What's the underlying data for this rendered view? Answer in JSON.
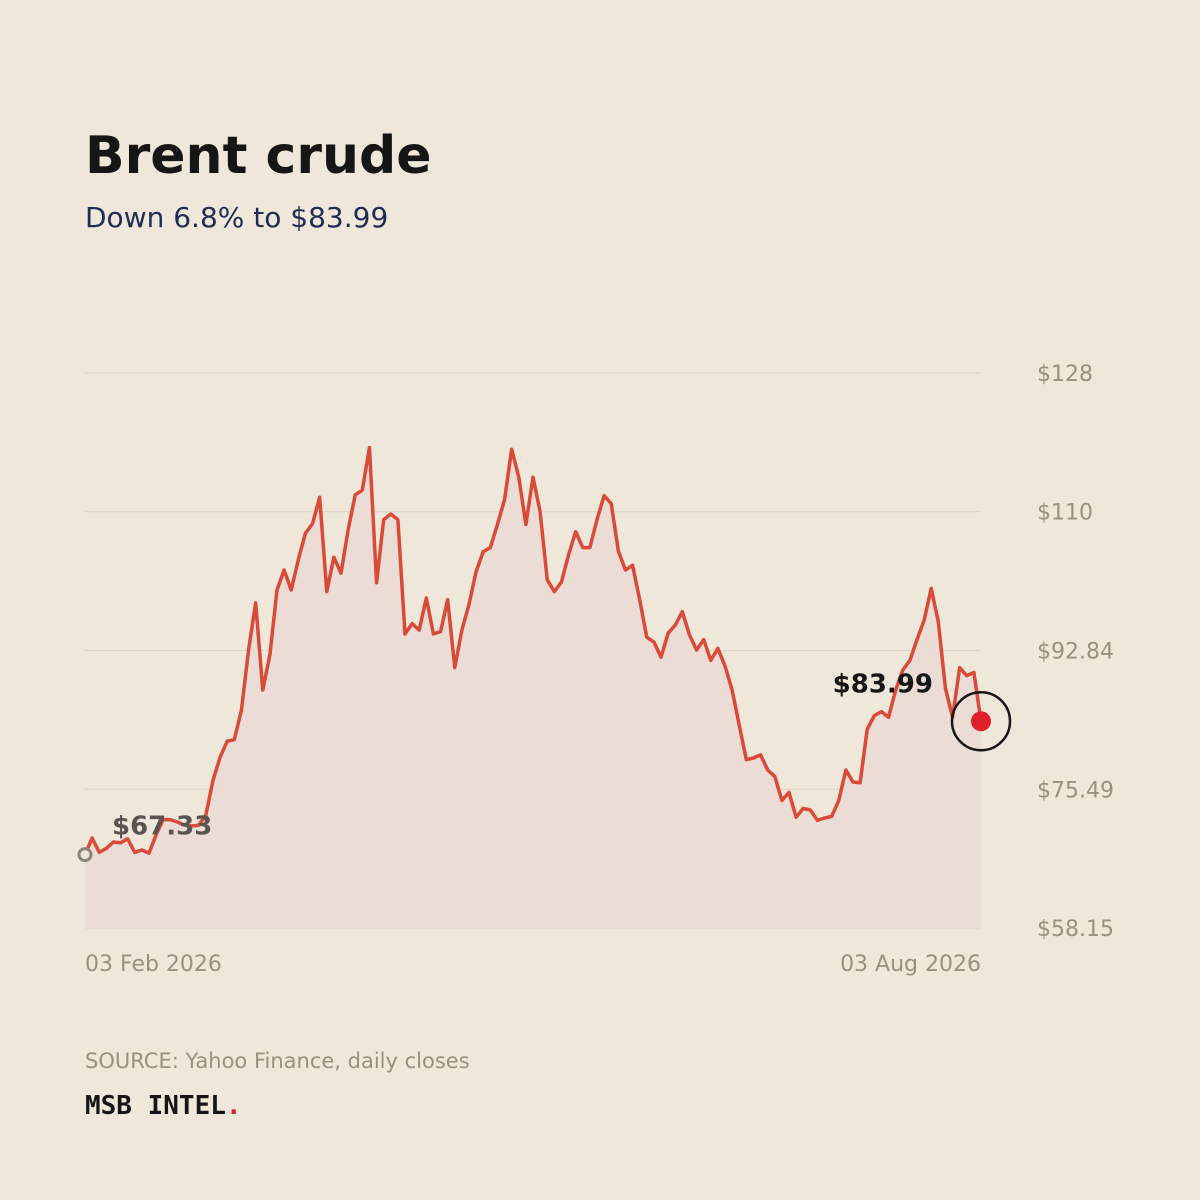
{
  "chart_data": {
    "type": "line",
    "title": "Brent crude",
    "subtitle": "Down 6.8% to $83.99",
    "source": "SOURCE: Yahoo Finance, daily closes",
    "brand": {
      "name": "MSB INTEL",
      "mark": "."
    },
    "color": "#d94a38",
    "fill": "#ecdcd6",
    "grid": true,
    "ylim": [
      58.15,
      127.53
    ],
    "yticks": [
      {
        "value": 58.15,
        "label": "$58.15"
      },
      {
        "value": 75.49,
        "label": "$75.49"
      },
      {
        "value": 92.84,
        "label": "$92.84"
      },
      {
        "value": 110.19,
        "label": "$110"
      },
      {
        "value": 127.53,
        "label": "$128"
      }
    ],
    "categories": [
      "03 Feb 2026",
      null,
      null,
      null,
      null,
      null,
      null,
      null,
      null,
      null,
      null,
      null,
      null,
      null,
      null,
      null,
      null,
      null,
      null,
      null,
      null,
      null,
      null,
      null,
      null,
      null,
      null,
      null,
      null,
      null,
      null,
      null,
      null,
      null,
      null,
      null,
      null,
      null,
      null,
      null,
      null,
      null,
      null,
      null,
      null,
      null,
      null,
      null,
      null,
      null,
      null,
      null,
      null,
      null,
      null,
      null,
      null,
      null,
      null,
      null,
      null,
      null,
      null,
      null,
      null,
      null,
      null,
      null,
      null,
      null,
      null,
      null,
      null,
      null,
      null,
      null,
      null,
      null,
      null,
      null,
      null,
      null,
      null,
      null,
      null,
      null,
      null,
      null,
      null,
      null,
      null,
      null,
      null,
      null,
      null,
      null,
      null,
      null,
      null,
      null,
      null,
      null,
      null,
      null,
      null,
      null,
      null,
      null,
      null,
      null,
      null,
      null,
      null,
      null,
      null,
      null,
      null,
      null,
      null,
      null,
      null,
      null,
      null,
      null,
      null,
      null,
      "03 Aug 2026"
    ],
    "values": [
      67.33,
      69.4,
      67.6,
      68.1,
      68.9,
      68.8,
      69.3,
      67.6,
      67.9,
      67.5,
      69.8,
      71.7,
      71.7,
      71.4,
      71.0,
      70.9,
      71.0,
      72.3,
      76.6,
      79.5,
      81.5,
      81.7,
      85.4,
      92.9,
      98.8,
      87.9,
      92.3,
      100.4,
      102.9,
      100.4,
      104.2,
      107.5,
      108.7,
      112.0,
      100.2,
      104.5,
      102.5,
      107.9,
      112.3,
      112.9,
      118.2,
      101.3,
      109.2,
      109.9,
      109.2,
      94.9,
      96.2,
      95.4,
      99.4,
      94.9,
      95.2,
      99.2,
      90.7,
      95.4,
      98.6,
      102.7,
      105.2,
      105.7,
      108.6,
      111.7,
      118.0,
      114.5,
      108.6,
      114.5,
      110.2,
      101.7,
      100.2,
      101.4,
      104.8,
      107.7,
      105.7,
      105.7,
      109.2,
      112.2,
      111.2,
      105.3,
      102.9,
      103.5,
      99.2,
      94.5,
      93.9,
      92.0,
      95.0,
      96.0,
      97.7,
      94.8,
      92.9,
      94.2,
      91.6,
      93.1,
      90.9,
      87.9,
      83.5,
      79.2,
      79.4,
      79.8,
      77.9,
      77.1,
      74.1,
      75.1,
      72.0,
      73.1,
      72.9,
      71.6,
      71.9,
      72.1,
      74.1,
      77.9,
      76.4,
      76.3,
      83.0,
      84.7,
      85.2,
      84.5,
      87.9,
      90.4,
      91.6,
      94.2,
      96.6,
      100.6,
      96.4,
      88.1,
      84.5,
      90.7,
      89.7,
      90.1,
      83.99
    ],
    "value_labels": [
      "$67.33",
      null,
      null,
      null,
      null,
      null,
      null,
      null,
      null,
      null,
      null,
      null,
      null,
      null,
      null,
      null,
      null,
      null,
      null,
      null,
      null,
      null,
      null,
      null,
      null,
      null,
      null,
      null,
      null,
      null,
      null,
      null,
      null,
      null,
      null,
      null,
      null,
      null,
      null,
      null,
      null,
      null,
      null,
      null,
      null,
      null,
      null,
      null,
      null,
      null,
      null,
      null,
      null,
      null,
      null,
      null,
      null,
      null,
      null,
      null,
      null,
      null,
      null,
      null,
      null,
      null,
      null,
      null,
      null,
      null,
      null,
      null,
      null,
      null,
      null,
      null,
      null,
      null,
      null,
      null,
      null,
      null,
      null,
      null,
      null,
      null,
      null,
      null,
      null,
      null,
      null,
      null,
      null,
      null,
      null,
      null,
      null,
      null,
      null,
      null,
      null,
      null,
      null,
      null,
      null,
      null,
      null,
      null,
      null,
      null,
      null,
      null,
      null,
      null,
      null,
      null,
      null,
      null,
      null,
      null,
      null,
      null,
      null,
      null,
      null,
      null,
      "$83.99"
    ]
  }
}
